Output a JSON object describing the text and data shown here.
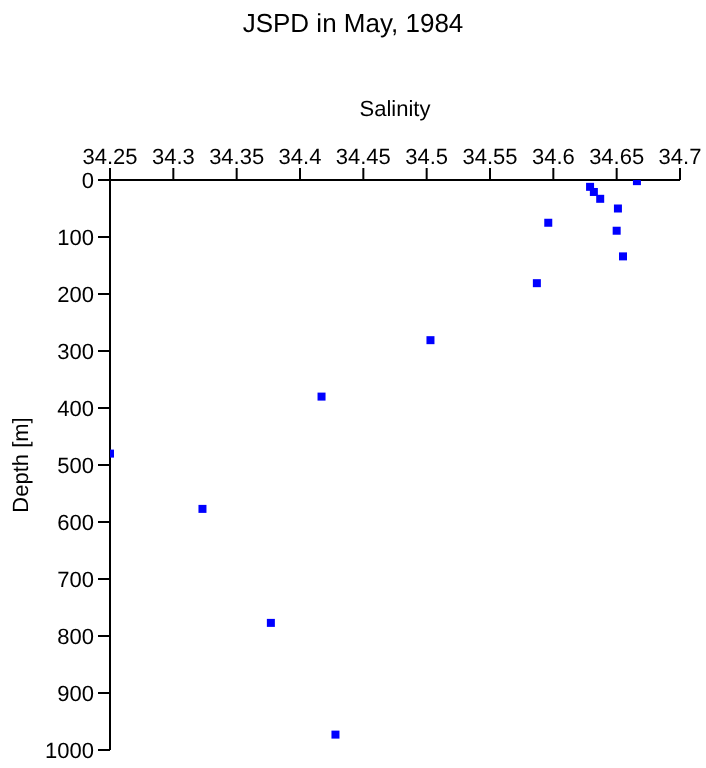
{
  "chart_data": {
    "type": "scatter",
    "title": "JSPD in May, 1984",
    "xlabel": "Salinity",
    "ylabel": "Depth [m]",
    "x": [
      34.666,
      34.629,
      34.632,
      34.637,
      34.651,
      34.596,
      34.65,
      34.655,
      34.587,
      34.503,
      34.417,
      34.25,
      34.323,
      34.377,
      34.428
    ],
    "series": [
      {
        "color": "#0000ff",
        "values": [
          2,
          12,
          21,
          33,
          50,
          75,
          89,
          134,
          181,
          281,
          380,
          480,
          577,
          777,
          973
        ]
      }
    ],
    "xlim": [
      34.25,
      34.7
    ],
    "xticks": [
      34.25,
      34.3,
      34.35,
      34.4,
      34.45,
      34.5,
      34.55,
      34.6,
      34.65,
      34.7
    ],
    "ylim": [
      1000,
      0
    ],
    "yticks": [
      0,
      100,
      200,
      300,
      400,
      500,
      600,
      700,
      800,
      900,
      1000
    ],
    "marker": "square",
    "grid": false,
    "legend": false
  }
}
